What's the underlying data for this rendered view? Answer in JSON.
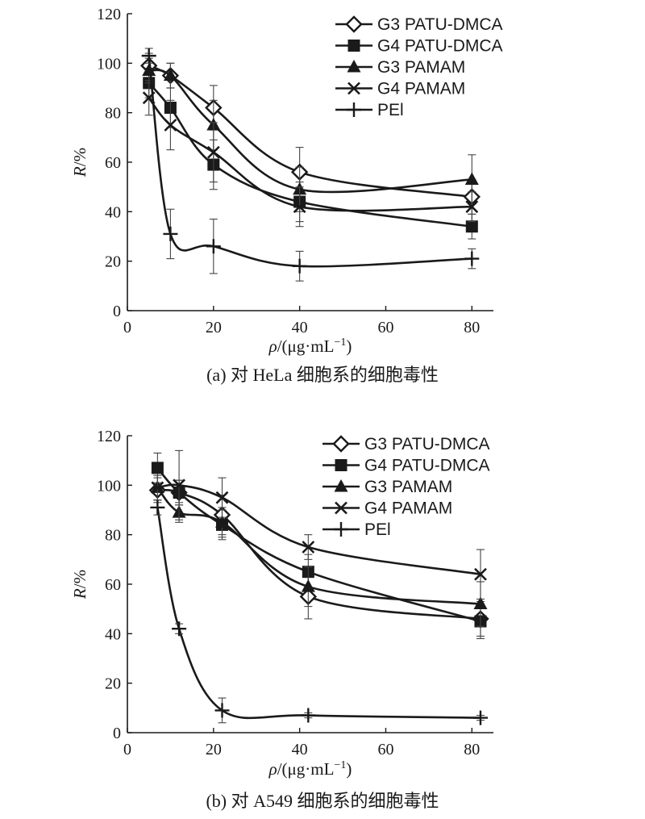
{
  "chart_data": [
    {
      "type": "line",
      "caption": "(a) 对 HeLa 细胞系的细胞毒性",
      "xlabel_prefix": "ρ",
      "xlabel_suffix": "/(μg·mL",
      "xlabel_sup": "−1",
      "xlabel_close": ")",
      "ylabel_var": "R",
      "ylabel_unit": "/%",
      "xlim": [
        0,
        85
      ],
      "ylim": [
        0,
        120
      ],
      "xticks": [
        "0",
        "20",
        "40",
        "60",
        "80"
      ],
      "yticks": [
        "0",
        "20",
        "40",
        "60",
        "80",
        "100",
        "120"
      ],
      "legend_position": "top-right",
      "series": [
        {
          "name": "G3 PATU-DMCA",
          "marker": "diamond-open",
          "x": [
            5,
            10,
            20,
            40,
            80
          ],
          "y": [
            99,
            95,
            82,
            56,
            46
          ],
          "err": [
            5,
            5,
            9,
            10,
            7
          ]
        },
        {
          "name": "G4 PATU-DMCA",
          "marker": "square-filled",
          "x": [
            5,
            10,
            20,
            40,
            80
          ],
          "y": [
            92,
            82,
            59,
            44,
            34
          ],
          "err": [
            6,
            8,
            10,
            8,
            5
          ]
        },
        {
          "name": "G3 PAMAM",
          "marker": "triangle-filled",
          "x": [
            5,
            10,
            20,
            40,
            80
          ],
          "y": [
            97,
            95,
            75,
            49,
            53
          ],
          "err": [
            5,
            5,
            10,
            9,
            10
          ]
        },
        {
          "name": "G4 PAMAM",
          "marker": "x",
          "x": [
            5,
            10,
            20,
            40,
            80
          ],
          "y": [
            86,
            75,
            64,
            42,
            42
          ],
          "err": [
            7,
            10,
            12,
            8,
            6
          ]
        },
        {
          "name": "PEl",
          "marker": "plus",
          "x": [
            5,
            10,
            20,
            40,
            80
          ],
          "y": [
            103,
            31,
            26,
            18,
            21
          ],
          "err": [
            3,
            10,
            11,
            6,
            4
          ]
        }
      ]
    },
    {
      "type": "line",
      "caption": "(b) 对 A549 细胞系的细胞毒性",
      "xlabel_prefix": "ρ",
      "xlabel_suffix": "/(μg·mL",
      "xlabel_sup": "−1",
      "xlabel_close": ")",
      "ylabel_var": "R",
      "ylabel_unit": "/%",
      "xlim": [
        0,
        85
      ],
      "ylim": [
        0,
        120
      ],
      "xticks": [
        "0",
        "20",
        "40",
        "60",
        "80"
      ],
      "yticks": [
        "0",
        "20",
        "40",
        "60",
        "80",
        "100",
        "120"
      ],
      "legend_position": "top-right",
      "series": [
        {
          "name": "G3 PATU-DMCA",
          "marker": "diamond-open",
          "x": [
            7,
            12,
            22,
            42,
            82
          ],
          "y": [
            98,
            97,
            88,
            55,
            46
          ],
          "err": [
            5,
            5,
            8,
            9,
            7
          ]
        },
        {
          "name": "G4 PATU-DMCA",
          "marker": "square-filled",
          "x": [
            7,
            12,
            22,
            42,
            82
          ],
          "y": [
            107,
            97,
            84,
            65,
            45
          ],
          "err": [
            6,
            5,
            6,
            7,
            7
          ]
        },
        {
          "name": "G3 PAMAM",
          "marker": "triangle-filled",
          "x": [
            7,
            12,
            22,
            42,
            82
          ],
          "y": [
            99,
            89,
            85,
            59,
            52
          ],
          "err": [
            5,
            4,
            6,
            8,
            9
          ]
        },
        {
          "name": "G4 PAMAM",
          "marker": "x",
          "x": [
            7,
            12,
            22,
            42,
            82
          ],
          "y": [
            99,
            100,
            95,
            75,
            64
          ],
          "err": [
            5,
            14,
            8,
            5,
            10
          ]
        },
        {
          "name": "PEl",
          "marker": "plus",
          "x": [
            7,
            12,
            22,
            42,
            82
          ],
          "y": [
            91,
            42,
            9,
            7,
            6
          ],
          "err": [
            3,
            2,
            5,
            1,
            1
          ]
        }
      ]
    }
  ]
}
